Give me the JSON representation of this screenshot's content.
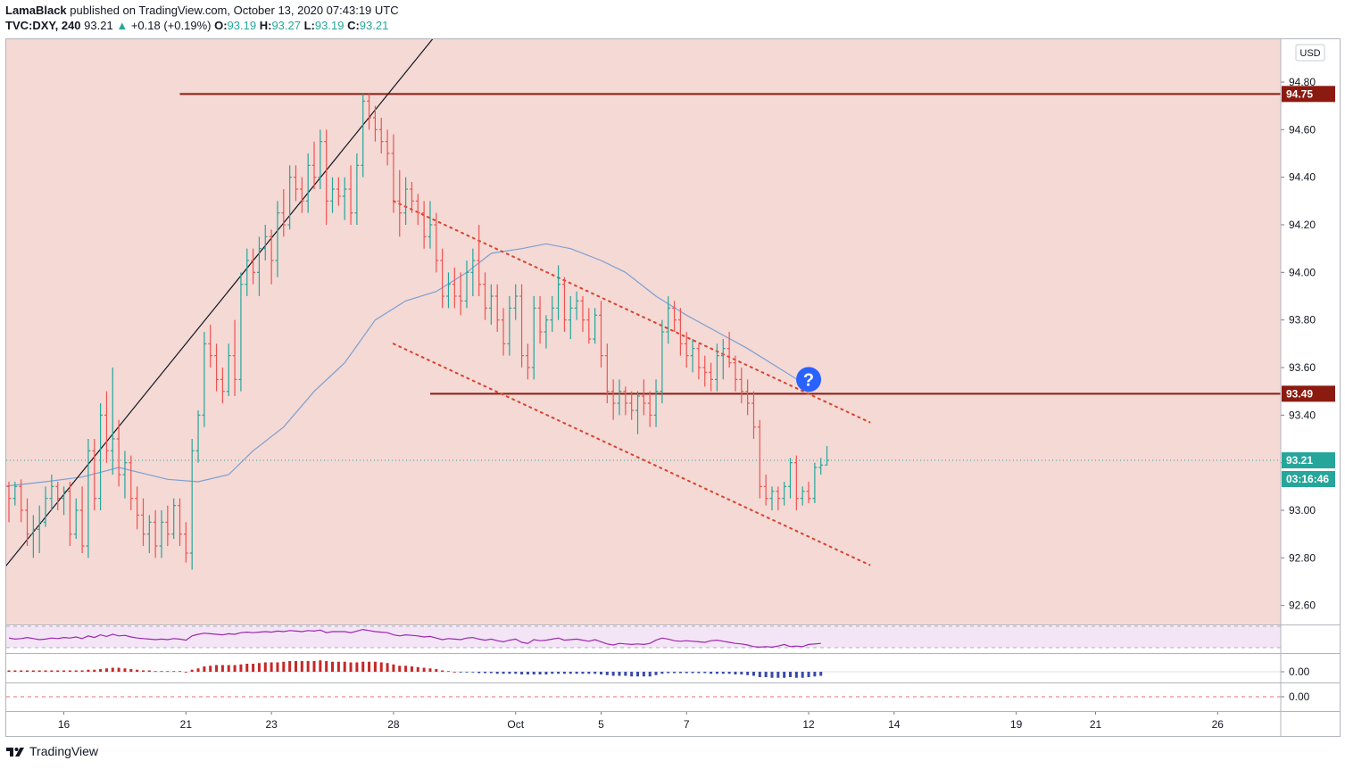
{
  "header": {
    "author": "LamaBlack",
    "published_text": "published on TradingView.com, October 13, 2020 07:43:19 UTC",
    "symbol": "TVC:DXY, 240",
    "last_price": "93.21",
    "change_arrow": "▲",
    "change": "+0.18 (+0.19%)",
    "o_label": "O:",
    "o_value": "93.19",
    "h_label": "H:",
    "h_value": "93.27",
    "l_label": "L:",
    "l_value": "93.19",
    "c_label": "C:",
    "c_value": "93.21"
  },
  "footer": {
    "brand": "TradingView"
  },
  "colors": {
    "up": "#26a69a",
    "down": "#ef5350",
    "background_zone": "#f4d9d5",
    "horizontal_level": "#8b1a10",
    "channel": "#d9432b",
    "moving_average": "#7e9fd0",
    "trendline": "#131722",
    "rsi": "#9c27b0",
    "rsi_band": "#f3e5f5",
    "question_badge": "#2962ff"
  },
  "chart_data": {
    "type": "candlestick",
    "symbol": "TVC:DXY",
    "timeframe": "240",
    "currency_label": "USD",
    "ylim": [
      92.52,
      94.98
    ],
    "y_ticks": [
      "94.80",
      "94.60",
      "94.40",
      "94.20",
      "94.00",
      "93.80",
      "93.60",
      "93.40",
      "93.20",
      "93.00",
      "92.80",
      "92.60"
    ],
    "x_ticks": [
      "16",
      "21",
      "23",
      "28",
      "Oct",
      "5",
      "7",
      "12",
      "14",
      "19",
      "21",
      "26"
    ],
    "price_labels": [
      {
        "text": "94.75",
        "value": 94.75,
        "style": "level"
      },
      {
        "text": "93.49",
        "value": 93.49,
        "style": "level"
      },
      {
        "text": "93.21",
        "value": 93.21,
        "style": "last"
      },
      {
        "text": "03:16:46",
        "value": 93.21,
        "style": "countdown"
      }
    ],
    "horizontal_levels": [
      {
        "value": 94.75,
        "from_bar": 28
      },
      {
        "value": 93.49,
        "from_bar": 69
      }
    ],
    "last_price_line": 93.21,
    "trendline": {
      "from": {
        "bar": -1,
        "price": 92.75
      },
      "to": {
        "bar": 70,
        "price": 95.0
      }
    },
    "channel": {
      "upper": {
        "from": {
          "bar": 63,
          "price": 94.3
        },
        "to": {
          "bar": 141,
          "price": 93.37
        }
      },
      "lower": {
        "from": {
          "bar": 63,
          "price": 93.7
        },
        "to": {
          "bar": 141,
          "price": 92.77
        }
      }
    },
    "annotation": {
      "type": "question-mark",
      "bar": 131,
      "price": 93.55
    },
    "candles": [
      [
        93.1,
        93.12,
        92.95,
        93.05
      ],
      [
        93.05,
        93.12,
        93.02,
        93.1
      ],
      [
        93.1,
        93.13,
        92.95,
        93.0
      ],
      [
        93.0,
        93.05,
        92.85,
        92.9
      ],
      [
        92.9,
        92.98,
        92.8,
        92.92
      ],
      [
        92.92,
        93.02,
        92.82,
        92.95
      ],
      [
        92.95,
        93.1,
        92.93,
        93.05
      ],
      [
        93.05,
        93.15,
        93.0,
        93.1
      ],
      [
        93.1,
        93.12,
        93.0,
        93.05
      ],
      [
        93.05,
        93.1,
        92.98,
        93.08
      ],
      [
        93.08,
        93.12,
        92.85,
        92.9
      ],
      [
        92.9,
        93.05,
        92.88,
        93.0
      ],
      [
        93.0,
        93.1,
        92.82,
        92.85
      ],
      [
        92.85,
        93.3,
        92.8,
        93.25
      ],
      [
        93.25,
        93.3,
        93.0,
        93.05
      ],
      [
        93.05,
        93.45,
        93.0,
        93.4
      ],
      [
        93.4,
        93.5,
        93.2,
        93.25
      ],
      [
        93.25,
        93.6,
        93.15,
        93.3
      ],
      [
        93.3,
        93.38,
        93.1,
        93.15
      ],
      [
        93.15,
        93.25,
        93.05,
        93.2
      ],
      [
        93.2,
        93.23,
        93.0,
        93.05
      ],
      [
        93.05,
        93.1,
        92.92,
        92.98
      ],
      [
        92.98,
        93.05,
        92.85,
        92.9
      ],
      [
        92.9,
        92.98,
        92.82,
        92.95
      ],
      [
        92.95,
        93.0,
        92.8,
        92.85
      ],
      [
        92.85,
        93.0,
        92.8,
        92.95
      ],
      [
        92.95,
        93.02,
        92.85,
        92.9
      ],
      [
        92.9,
        93.05,
        92.88,
        93.02
      ],
      [
        93.02,
        93.05,
        92.85,
        92.9
      ],
      [
        92.9,
        92.95,
        92.78,
        92.82
      ],
      [
        92.82,
        93.3,
        92.75,
        93.25
      ],
      [
        93.25,
        93.42,
        93.2,
        93.4
      ],
      [
        93.4,
        93.75,
        93.35,
        93.7
      ],
      [
        93.7,
        93.78,
        93.6,
        93.65
      ],
      [
        93.65,
        93.7,
        93.5,
        93.55
      ],
      [
        93.55,
        93.6,
        93.45,
        93.5
      ],
      [
        93.5,
        93.7,
        93.48,
        93.65
      ],
      [
        93.65,
        93.8,
        93.48,
        93.55
      ],
      [
        93.55,
        94.0,
        93.5,
        93.95
      ],
      [
        93.95,
        94.1,
        93.9,
        94.05
      ],
      [
        94.05,
        94.1,
        93.95,
        94.0
      ],
      [
        94.0,
        94.15,
        93.9,
        94.1
      ],
      [
        94.1,
        94.2,
        94.05,
        94.15
      ],
      [
        94.15,
        94.18,
        93.95,
        94.05
      ],
      [
        94.05,
        94.3,
        93.98,
        94.25
      ],
      [
        94.25,
        94.35,
        94.15,
        94.2
      ],
      [
        94.2,
        94.45,
        94.18,
        94.4
      ],
      [
        94.4,
        94.45,
        94.3,
        94.35
      ],
      [
        94.35,
        94.4,
        94.25,
        94.3
      ],
      [
        94.3,
        94.5,
        94.25,
        94.45
      ],
      [
        94.45,
        94.55,
        94.35,
        94.4
      ],
      [
        94.4,
        94.6,
        94.35,
        94.55
      ],
      [
        94.55,
        94.6,
        94.2,
        94.3
      ],
      [
        94.3,
        94.4,
        94.25,
        94.35
      ],
      [
        94.35,
        94.4,
        94.28,
        94.32
      ],
      [
        94.32,
        94.4,
        94.22,
        94.35
      ],
      [
        94.35,
        94.45,
        94.2,
        94.25
      ],
      [
        94.25,
        94.5,
        94.2,
        94.45
      ],
      [
        94.45,
        94.75,
        94.4,
        94.72
      ],
      [
        94.72,
        94.75,
        94.6,
        94.65
      ],
      [
        94.65,
        94.7,
        94.55,
        94.6
      ],
      [
        94.6,
        94.65,
        94.5,
        94.55
      ],
      [
        94.55,
        94.6,
        94.45,
        94.5
      ],
      [
        94.5,
        94.58,
        94.25,
        94.3
      ],
      [
        94.3,
        94.43,
        94.15,
        94.25
      ],
      [
        94.25,
        94.4,
        94.2,
        94.35
      ],
      [
        94.35,
        94.38,
        94.25,
        94.3
      ],
      [
        94.3,
        94.33,
        94.2,
        94.25
      ],
      [
        94.25,
        94.3,
        94.1,
        94.15
      ],
      [
        94.15,
        94.3,
        94.1,
        94.2
      ],
      [
        94.2,
        94.25,
        94.0,
        94.05
      ],
      [
        94.05,
        94.1,
        93.85,
        93.9
      ],
      [
        93.9,
        94.0,
        93.85,
        93.95
      ],
      [
        93.95,
        94.02,
        93.85,
        93.9
      ],
      [
        93.9,
        94.0,
        93.82,
        93.88
      ],
      [
        93.88,
        94.05,
        93.85,
        94.0
      ],
      [
        94.0,
        94.1,
        93.9,
        94.05
      ],
      [
        94.05,
        94.2,
        93.9,
        93.95
      ],
      [
        93.95,
        94.0,
        93.8,
        93.85
      ],
      [
        93.85,
        93.95,
        93.78,
        93.9
      ],
      [
        93.9,
        93.95,
        93.75,
        93.8
      ],
      [
        93.8,
        93.85,
        93.65,
        93.7
      ],
      [
        93.7,
        93.9,
        93.65,
        93.85
      ],
      [
        93.85,
        93.95,
        93.8,
        93.9
      ],
      [
        93.9,
        93.95,
        93.6,
        93.65
      ],
      [
        93.65,
        93.7,
        93.55,
        93.6
      ],
      [
        93.6,
        93.9,
        93.55,
        93.85
      ],
      [
        93.85,
        93.9,
        93.7,
        93.75
      ],
      [
        93.75,
        93.82,
        93.68,
        93.8
      ],
      [
        93.8,
        93.9,
        93.75,
        93.85
      ],
      [
        93.85,
        94.03,
        93.8,
        93.95
      ],
      [
        93.95,
        93.98,
        93.75,
        93.8
      ],
      [
        93.8,
        93.9,
        93.72,
        93.85
      ],
      [
        93.85,
        93.92,
        93.8,
        93.88
      ],
      [
        93.88,
        93.9,
        93.75,
        93.8
      ],
      [
        93.8,
        93.85,
        93.7,
        93.72
      ],
      [
        93.72,
        93.85,
        93.7,
        93.82
      ],
      [
        93.82,
        93.88,
        93.6,
        93.65
      ],
      [
        93.65,
        93.7,
        93.45,
        93.5
      ],
      [
        93.5,
        93.55,
        93.38,
        93.45
      ],
      [
        93.45,
        93.55,
        93.4,
        93.5
      ],
      [
        93.5,
        93.52,
        93.4,
        93.45
      ],
      [
        93.45,
        93.5,
        93.38,
        93.42
      ],
      [
        93.42,
        93.5,
        93.32,
        93.48
      ],
      [
        93.48,
        93.55,
        93.4,
        93.45
      ],
      [
        93.45,
        93.5,
        93.35,
        93.4
      ],
      [
        93.4,
        93.55,
        93.35,
        93.5
      ],
      [
        93.5,
        93.8,
        93.45,
        93.75
      ],
      [
        93.75,
        93.9,
        93.7,
        93.85
      ],
      [
        93.85,
        93.88,
        93.75,
        93.8
      ],
      [
        93.8,
        93.85,
        93.65,
        93.7
      ],
      [
        93.7,
        93.75,
        93.6,
        93.65
      ],
      [
        93.65,
        93.72,
        93.58,
        93.68
      ],
      [
        93.68,
        93.7,
        93.55,
        93.6
      ],
      [
        93.6,
        93.65,
        93.52,
        93.58
      ],
      [
        93.58,
        93.62,
        93.5,
        93.55
      ],
      [
        93.55,
        93.7,
        93.5,
        93.65
      ],
      [
        93.65,
        93.72,
        93.55,
        93.68
      ],
      [
        93.68,
        93.75,
        93.6,
        93.62
      ],
      [
        93.62,
        93.65,
        93.5,
        93.55
      ],
      [
        93.55,
        93.6,
        93.45,
        93.5
      ],
      [
        93.5,
        93.55,
        93.4,
        93.45
      ],
      [
        93.45,
        93.5,
        93.3,
        93.35
      ],
      [
        93.35,
        93.38,
        93.05,
        93.1
      ],
      [
        93.1,
        93.15,
        93.02,
        93.05
      ],
      [
        93.05,
        93.1,
        93.0,
        93.08
      ],
      [
        93.08,
        93.1,
        93.0,
        93.05
      ],
      [
        93.05,
        93.12,
        93.02,
        93.1
      ],
      [
        93.1,
        93.22,
        93.05,
        93.2
      ],
      [
        93.2,
        93.23,
        93.0,
        93.05
      ],
      [
        93.05,
        93.1,
        93.02,
        93.08
      ],
      [
        93.08,
        93.12,
        93.03,
        93.05
      ],
      [
        93.05,
        93.2,
        93.03,
        93.18
      ],
      [
        93.18,
        93.22,
        93.15,
        93.19
      ],
      [
        93.19,
        93.27,
        93.19,
        93.21
      ]
    ],
    "moving_average": {
      "points": [
        [
          -1,
          93.1
        ],
        [
          6,
          93.12
        ],
        [
          12,
          93.14
        ],
        [
          18,
          93.18
        ],
        [
          26,
          93.13
        ],
        [
          31,
          93.12
        ],
        [
          36,
          93.15
        ],
        [
          40,
          93.25
        ],
        [
          45,
          93.35
        ],
        [
          50,
          93.5
        ],
        [
          55,
          93.62
        ],
        [
          60,
          93.8
        ],
        [
          65,
          93.88
        ],
        [
          70,
          93.92
        ],
        [
          75,
          94.0
        ],
        [
          79,
          94.08
        ],
        [
          84,
          94.1
        ],
        [
          88,
          94.12
        ],
        [
          92,
          94.1
        ],
        [
          97,
          94.05
        ],
        [
          101,
          94.0
        ],
        [
          106,
          93.9
        ],
        [
          111,
          93.82
        ],
        [
          116,
          93.75
        ],
        [
          121,
          93.68
        ],
        [
          126,
          93.6
        ],
        [
          131,
          93.52
        ]
      ]
    },
    "rsi": {
      "levels": [
        70,
        30
      ],
      "values": [
        48,
        46,
        47,
        49,
        47,
        45,
        46,
        48,
        47,
        49,
        48,
        50,
        47,
        52,
        49,
        54,
        51,
        55,
        52,
        53,
        50,
        48,
        47,
        46,
        45,
        46,
        45,
        47,
        46,
        44,
        52,
        55,
        57,
        56,
        55,
        54,
        56,
        55,
        58,
        59,
        58,
        59,
        60,
        59,
        61,
        60,
        62,
        61,
        60,
        62,
        61,
        63,
        58,
        60,
        60,
        60,
        58,
        61,
        64,
        62,
        60,
        59,
        58,
        54,
        52,
        54,
        53,
        52,
        50,
        51,
        48,
        45,
        47,
        46,
        45,
        48,
        49,
        46,
        44,
        46,
        43,
        41,
        44,
        46,
        40,
        38,
        45,
        43,
        44,
        46,
        48,
        44,
        45,
        46,
        44,
        42,
        45,
        41,
        37,
        35,
        38,
        37,
        36,
        37,
        36,
        38,
        44,
        48,
        46,
        43,
        42,
        43,
        42,
        41,
        40,
        43,
        44,
        42,
        40,
        38,
        37,
        35,
        32,
        31,
        32,
        31,
        33,
        36,
        32,
        33,
        32,
        36,
        37,
        38
      ]
    },
    "macd": {
      "histogram": [
        0.02,
        0.02,
        0.02,
        0.02,
        0.02,
        0.02,
        0.02,
        0.02,
        0.02,
        0.02,
        0.02,
        0.02,
        0.02,
        0.03,
        0.03,
        0.04,
        0.05,
        0.06,
        0.06,
        0.05,
        0.04,
        0.03,
        0.02,
        0.02,
        0.01,
        0.01,
        0.01,
        0.01,
        0.01,
        0.0,
        0.03,
        0.05,
        0.08,
        0.09,
        0.1,
        0.1,
        0.1,
        0.1,
        0.11,
        0.12,
        0.12,
        0.13,
        0.14,
        0.14,
        0.14,
        0.15,
        0.16,
        0.16,
        0.16,
        0.16,
        0.16,
        0.17,
        0.16,
        0.15,
        0.15,
        0.15,
        0.14,
        0.14,
        0.15,
        0.15,
        0.15,
        0.14,
        0.13,
        0.11,
        0.09,
        0.09,
        0.08,
        0.07,
        0.06,
        0.05,
        0.04,
        0.02,
        0.01,
        0.0,
        -0.01,
        -0.01,
        -0.01,
        -0.02,
        -0.02,
        -0.02,
        -0.03,
        -0.03,
        -0.03,
        -0.03,
        -0.04,
        -0.04,
        -0.04,
        -0.04,
        -0.04,
        -0.03,
        -0.03,
        -0.03,
        -0.03,
        -0.03,
        -0.03,
        -0.03,
        -0.03,
        -0.04,
        -0.05,
        -0.06,
        -0.06,
        -0.06,
        -0.07,
        -0.07,
        -0.07,
        -0.07,
        -0.05,
        -0.03,
        -0.02,
        -0.02,
        -0.02,
        -0.02,
        -0.02,
        -0.02,
        -0.02,
        -0.03,
        -0.03,
        -0.03,
        -0.03,
        -0.04,
        -0.04,
        -0.05,
        -0.06,
        -0.08,
        -0.08,
        -0.09,
        -0.09,
        -0.09,
        -0.08,
        -0.09,
        -0.09,
        -0.08,
        -0.07,
        -0.06
      ],
      "zero_label": "0.00"
    },
    "third_pane": {
      "zero_label": "0.00"
    }
  }
}
